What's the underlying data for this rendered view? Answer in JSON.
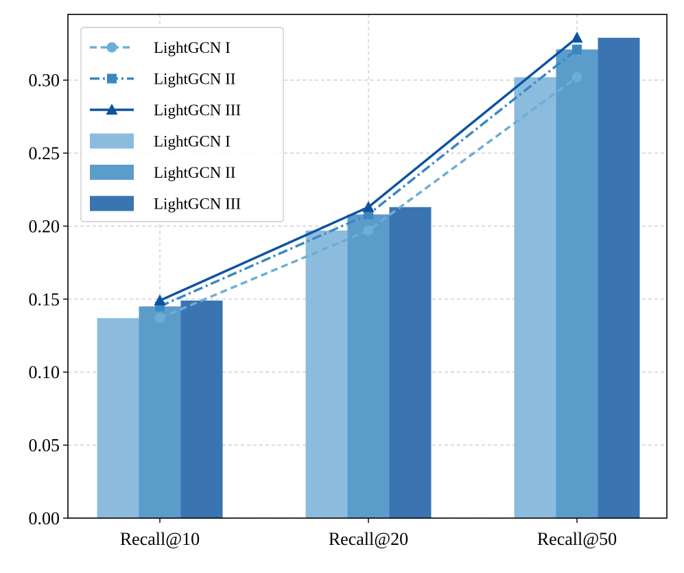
{
  "chart_data": {
    "type": "bar",
    "title": "",
    "xlabel": "",
    "ylabel": "",
    "categories": [
      "Recall@10",
      "Recall@20",
      "Recall@50"
    ],
    "ylim": [
      0,
      0.345
    ],
    "yticks": [
      0.0,
      0.05,
      0.1,
      0.15,
      0.2,
      0.25,
      0.3
    ],
    "ytick_labels": [
      "0.00",
      "0.05",
      "0.10",
      "0.15",
      "0.20",
      "0.25",
      "0.30"
    ],
    "grid": true,
    "legend_position": "top-left",
    "bar_series": [
      {
        "name": "LightGCN I",
        "values": [
          0.137,
          0.197,
          0.302
        ],
        "color": "#8bbcdd"
      },
      {
        "name": "LightGCN II",
        "values": [
          0.145,
          0.208,
          0.321
        ],
        "color": "#5b9ccb"
      },
      {
        "name": "LightGCN III",
        "values": [
          0.149,
          0.213,
          0.329
        ],
        "color": "#3a75b1"
      }
    ],
    "line_series": [
      {
        "name": "LightGCN I",
        "values": [
          0.137,
          0.197,
          0.302
        ],
        "color": "#6baed6",
        "linestyle": "dashed",
        "marker": "circle"
      },
      {
        "name": "LightGCN II",
        "values": [
          0.145,
          0.208,
          0.321
        ],
        "color": "#3a87c2",
        "linestyle": "dashdot",
        "marker": "square"
      },
      {
        "name": "LightGCN III",
        "values": [
          0.149,
          0.213,
          0.329
        ],
        "color": "#0e53a0",
        "linestyle": "solid",
        "marker": "triangle"
      }
    ]
  }
}
